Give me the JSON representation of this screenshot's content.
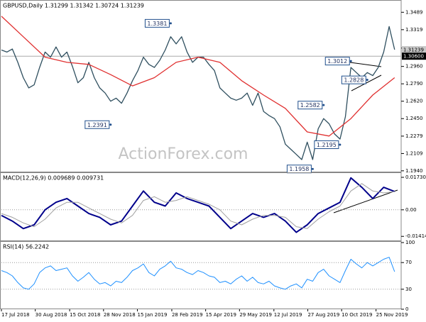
{
  "chart_data": [
    {
      "type": "line",
      "title": "GBPUSD,Daily  1.31299 1.31342 1.30724 1.31239",
      "watermark": "ActionForex.com",
      "xlim": [
        0,
        73.2
      ],
      "ylim": [
        1.1925,
        1.3595
      ],
      "yticks": [
        1.3489,
        1.3319,
        1.3139,
        {
          "value": 1.296,
          "label": "1.2960"
        },
        {
          "value": 1.279,
          "label": "1.2790"
        },
        {
          "value": 1.262,
          "label": "1.2620"
        },
        {
          "value": 1.245,
          "label": "1.2450"
        },
        1.2279,
        1.2109,
        {
          "value": 1.194,
          "label": "1.1940"
        }
      ],
      "series": [
        {
          "color": "#2f4f5f",
          "values": [
            1.312,
            1.31,
            1.313,
            1.3,
            1.285,
            1.275,
            1.278,
            1.295,
            1.31,
            1.305,
            1.315,
            1.305,
            1.31,
            1.296,
            1.28,
            1.285,
            1.3,
            1.285,
            1.275,
            1.27,
            1.262,
            1.265,
            1.26,
            1.27,
            1.282,
            1.292,
            1.305,
            1.298,
            1.295,
            1.302,
            1.312,
            1.325,
            1.318,
            1.325,
            1.31,
            1.3,
            1.305,
            1.305,
            1.298,
            1.292,
            1.275,
            1.27,
            1.265,
            1.263,
            1.265,
            1.27,
            1.258,
            1.27,
            1.252,
            1.248,
            1.245,
            1.237,
            1.22,
            1.215,
            1.21,
            1.205,
            1.222,
            1.205,
            1.235,
            1.245,
            1.24,
            1.23,
            1.225,
            1.247,
            1.295,
            1.29,
            1.285,
            1.29,
            1.287,
            1.295,
            1.31,
            1.335,
            1.3124
          ]
        },
        {
          "color": "#e03030",
          "x": [
            0,
            4,
            8,
            12,
            16,
            20,
            24,
            28,
            32,
            36,
            40,
            44,
            48,
            52,
            56,
            60,
            64,
            68,
            72
          ],
          "values": [
            1.345,
            1.325,
            1.305,
            1.3,
            1.298,
            1.288,
            1.277,
            1.285,
            1.3,
            1.305,
            1.3,
            1.282,
            1.268,
            1.255,
            1.232,
            1.228,
            1.245,
            1.268,
            1.285
          ]
        }
      ],
      "annotations": [
        {
          "x": 31,
          "value": 1.3381
        },
        {
          "x": 20,
          "value": 1.2391
        },
        {
          "x": 64,
          "value": 1.3012
        },
        {
          "x": 67,
          "value": 1.2828
        },
        {
          "x": 59,
          "value": 1.2582
        },
        {
          "x": 62,
          "value": 1.2195
        },
        {
          "x": 57,
          "value": 1.1958
        }
      ],
      "price_markers": [
        {
          "value": 1.31239,
          "color": "#c8c8c8",
          "text_color": "#000000"
        },
        {
          "value": 1.306,
          "label": "1.30600",
          "color": "#000000",
          "text_color": "#ffffff"
        }
      ]
    },
    {
      "type": "line",
      "title": "MACD(12,26,9) 0.009689 0.009731",
      "xlim": [
        0,
        73.2
      ],
      "ylim": [
        -0.0167,
        0.0192
      ],
      "yticks": [
        0.017302,
        {
          "value": 0,
          "label": "0.00"
        },
        -0.014148
      ],
      "series": [
        {
          "color": "#00008b",
          "width": 2,
          "x": [
            0,
            2,
            4,
            6,
            8,
            10,
            12,
            14,
            16,
            18,
            20,
            22,
            24,
            26,
            28,
            30,
            32,
            34,
            36,
            38,
            40,
            42,
            44,
            46,
            48,
            50,
            52,
            54,
            56,
            58,
            60,
            62,
            64,
            66,
            68,
            70,
            72
          ],
          "values": [
            -0.003,
            -0.006,
            -0.01,
            -0.008,
            0.0,
            0.004,
            0.006,
            0.002,
            -0.002,
            -0.004,
            -0.008,
            -0.006,
            0.002,
            0.01,
            0.004,
            0.002,
            0.009,
            0.006,
            0.004,
            0.002,
            -0.004,
            -0.01,
            -0.006,
            -0.002,
            -0.004,
            -0.002,
            -0.006,
            -0.012,
            -0.008,
            -0.002,
            0.001,
            0.004,
            0.017,
            0.012,
            0.006,
            0.012,
            0.0097
          ]
        },
        {
          "color": "#a0a0a0",
          "width": 1,
          "x": [
            0,
            2,
            4,
            6,
            8,
            10,
            12,
            14,
            16,
            18,
            20,
            22,
            24,
            26,
            28,
            30,
            32,
            34,
            36,
            38,
            40,
            42,
            44,
            46,
            48,
            50,
            52,
            54,
            56,
            58,
            60,
            62,
            64,
            66,
            68,
            70,
            72
          ],
          "values": [
            -0.002,
            -0.004,
            -0.007,
            -0.009,
            -0.005,
            0.001,
            0.004,
            0.004,
            0.001,
            -0.002,
            -0.005,
            -0.007,
            -0.003,
            0.005,
            0.007,
            0.004,
            0.005,
            0.007,
            0.005,
            0.003,
            0.0,
            -0.006,
            -0.008,
            -0.005,
            -0.003,
            -0.003,
            -0.004,
            -0.009,
            -0.01,
            -0.005,
            -0.001,
            0.002,
            0.01,
            0.014,
            0.01,
            0.009,
            0.00973
          ]
        }
      ]
    },
    {
      "type": "line",
      "title": "RSI(14) 56.2242",
      "xlim": [
        0,
        73.2
      ],
      "ylim": [
        0,
        100
      ],
      "yticks": [
        100,
        70,
        30,
        0
      ],
      "levels": [
        70,
        30
      ],
      "series": [
        {
          "color": "#1e90ff",
          "width": 1,
          "values": [
            58,
            55,
            50,
            40,
            32,
            30,
            38,
            55,
            62,
            65,
            58,
            60,
            62,
            50,
            42,
            48,
            55,
            45,
            38,
            40,
            35,
            42,
            40,
            48,
            58,
            62,
            68,
            55,
            50,
            60,
            65,
            72,
            62,
            60,
            55,
            52,
            58,
            55,
            50,
            48,
            40,
            42,
            38,
            45,
            50,
            42,
            48,
            40,
            38,
            42,
            35,
            32,
            30,
            35,
            38,
            32,
            45,
            42,
            55,
            60,
            50,
            45,
            40,
            58,
            75,
            68,
            62,
            70,
            65,
            70,
            75,
            78,
            56.2242
          ]
        }
      ],
      "xticks": [
        {
          "value": 0,
          "label": "17 Jul 2018"
        },
        {
          "value": 6.2,
          "label": "30 Aug 2018"
        },
        {
          "value": 12.5,
          "label": "15 Oct 2018"
        },
        {
          "value": 18.7,
          "label": "28 Nov 2018"
        },
        {
          "value": 24.9,
          "label": "15 Jan 2019"
        },
        {
          "value": 31.2,
          "label": "28 Feb 2019"
        },
        {
          "value": 37.4,
          "label": "15 Apr 2019"
        },
        {
          "value": 43.6,
          "label": "29 May 2019"
        },
        {
          "value": 49.9,
          "label": "12 Jul 2019"
        },
        {
          "value": 56.1,
          "label": "27 Aug 2019"
        },
        {
          "value": 62.3,
          "label": "10 Oct 2019"
        },
        {
          "value": 68.6,
          "label": "25 Nov 2019"
        }
      ]
    }
  ]
}
